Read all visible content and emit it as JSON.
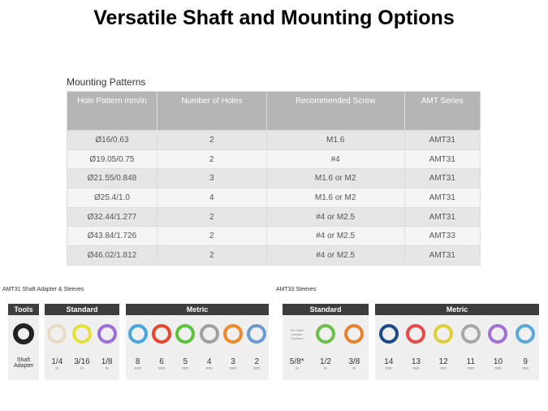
{
  "title": "Versatile Shaft and Mounting Options",
  "table": {
    "caption": "Mounting Patterns",
    "headers": [
      "Hole Pattern mm/in",
      "Number of Holes",
      "Recommended Screw",
      "AMT Series"
    ],
    "rows": [
      [
        "Ø16/0.63",
        "2",
        "M1.6",
        "AMT31"
      ],
      [
        "Ø19.05/0.75",
        "2",
        "#4",
        "AMT31"
      ],
      [
        "Ø21.55/0.848",
        "3",
        "M1.6 or M2",
        "AMT31"
      ],
      [
        "Ø25.4/1.0",
        "4",
        "M1.6 or M2",
        "AMT31"
      ],
      [
        "Ø32.44/1.277",
        "2",
        "#4 or M2.5",
        "AMT31"
      ],
      [
        "Ø43.84/1.726",
        "2",
        "#4 or M2.5",
        "AMT33"
      ],
      [
        "Ø46.02/1.812",
        "2",
        "#4 or M2.5",
        "AMT31"
      ]
    ]
  },
  "panels": [
    {
      "label": "AMT31 Shaft Adapter & Sleeves",
      "groups": [
        {
          "name": "Tools",
          "items": [
            {
              "value": "Shaft Adapter",
              "color": "#222222"
            }
          ]
        },
        {
          "name": "Standard",
          "items": [
            {
              "value": "1/4",
              "unit": "in",
              "color": "#e8dcc4"
            },
            {
              "value": "3/16",
              "unit": "in",
              "color": "#e2e23a"
            },
            {
              "value": "1/8",
              "unit": "in",
              "color": "#9b6fd6"
            }
          ]
        },
        {
          "name": "Metric",
          "items": [
            {
              "value": "8",
              "unit": "mm",
              "color": "#4aa6e0"
            },
            {
              "value": "6",
              "unit": "mm",
              "color": "#e8452c"
            },
            {
              "value": "5",
              "unit": "mm",
              "color": "#5cc43a"
            },
            {
              "value": "4",
              "unit": "mm",
              "color": "#a0a0a0"
            },
            {
              "value": "3",
              "unit": "mm",
              "color": "#ee8a2c"
            },
            {
              "value": "2",
              "unit": "mm",
              "color": "#6a9ad0"
            }
          ]
        }
      ]
    },
    {
      "label": "AMT33 Sleeves",
      "groups": [
        {
          "name": "Standard",
          "items": [
            {
              "value": "5/8*",
              "unit": "in",
              "note": "No Shaft Adapter Needed"
            },
            {
              "value": "1/2",
              "unit": "in",
              "color": "#6cc04a"
            },
            {
              "value": "3/8",
              "unit": "in",
              "color": "#e8822c"
            }
          ]
        },
        {
          "name": "Metric",
          "items": [
            {
              "value": "14",
              "unit": "mm",
              "color": "#1c4a8a"
            },
            {
              "value": "13",
              "unit": "mm",
              "color": "#e84a4a"
            },
            {
              "value": "12",
              "unit": "mm",
              "color": "#e0cf3a"
            },
            {
              "value": "11",
              "unit": "mm",
              "color": "#a8a8a8"
            },
            {
              "value": "10",
              "unit": "mm",
              "color": "#a070d8"
            },
            {
              "value": "9",
              "unit": "mm",
              "color": "#5aaad8"
            }
          ]
        }
      ]
    }
  ]
}
